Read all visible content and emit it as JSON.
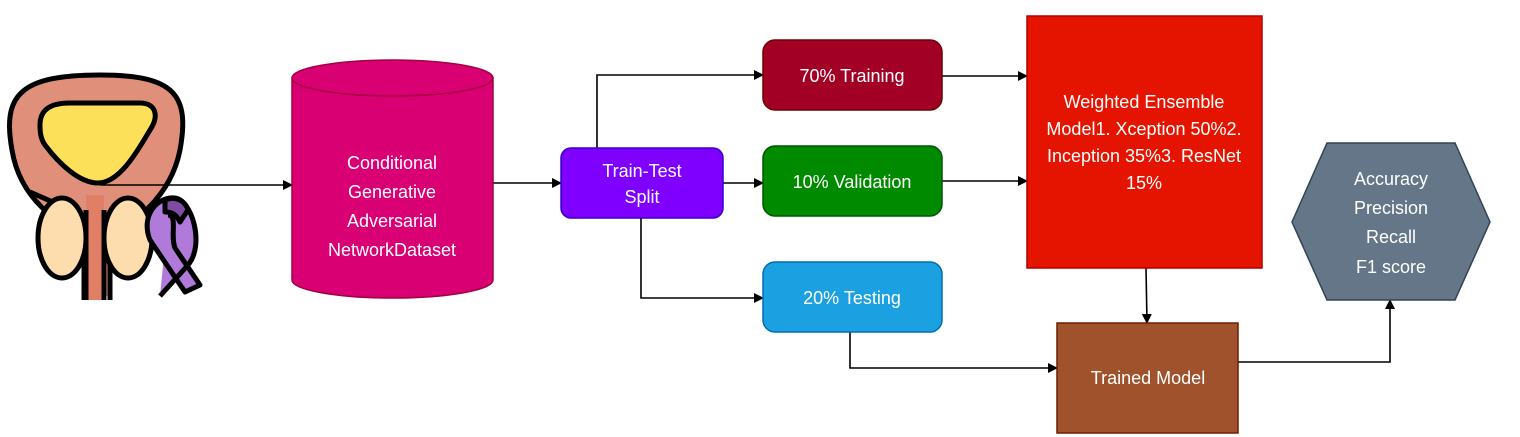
{
  "nodes": {
    "dataset": {
      "lines": [
        "Conditional",
        "Generative",
        "Adversarial",
        "NetworkDataset"
      ],
      "color": "#D80073"
    },
    "split": {
      "lines": [
        "Train-Test",
        "Split"
      ],
      "color": "#7F00FF"
    },
    "training": {
      "label": "70% Training",
      "color": "#A20025"
    },
    "validation": {
      "label": "10% Validation",
      "color": "#008A00"
    },
    "testing": {
      "label": "20% Testing",
      "color": "#1BA1E2"
    },
    "ensemble": {
      "lines": [
        "Weighted Ensemble",
        "Model1. Xception 50%2.",
        "Inception 35%3. ResNet",
        "15%"
      ],
      "color": "#E51400"
    },
    "trained": {
      "label": "Trained Model",
      "color": "#A0522D"
    },
    "metrics": {
      "lines": [
        "Accuracy",
        "Precision",
        "Recall",
        "F1 score"
      ],
      "color": "#647687"
    }
  },
  "icons": {
    "input": "prostate-cancer-ribbon-icon"
  }
}
